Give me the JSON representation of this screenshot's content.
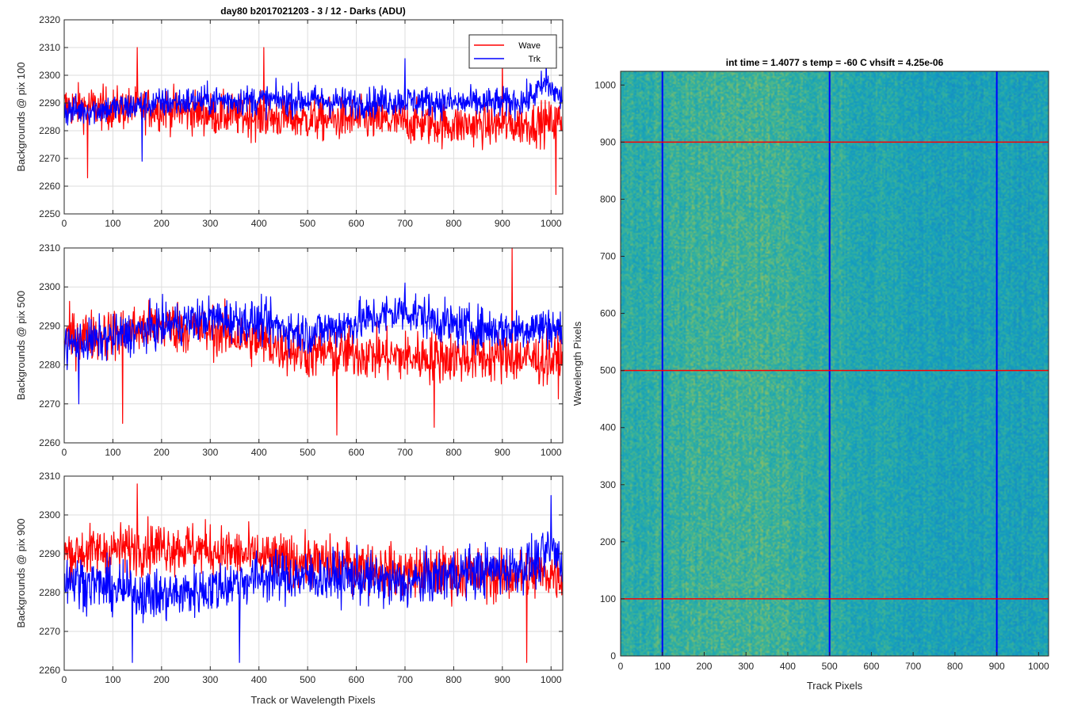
{
  "figure": {
    "title": "day80 b2017021203 - 3 / 12 - Darks (ADU)",
    "xlabel": "Track or Wavelength Pixels",
    "colors": {
      "wave": "#ff0000",
      "trk": "#0000ff",
      "grid": "#dedede",
      "axis": "#262626"
    }
  },
  "chart_data": [
    {
      "type": "line",
      "title": "day80 b2017021203 - 3 / 12 - Darks (ADU)",
      "ylabel": "Backgrounds @ pix 100",
      "xlabel": "",
      "xlim": [
        0,
        1024
      ],
      "ylim": [
        2250,
        2320
      ],
      "xticks": [
        0,
        100,
        200,
        300,
        400,
        500,
        600,
        700,
        800,
        900,
        1000
      ],
      "yticks": [
        2250,
        2260,
        2270,
        2280,
        2290,
        2300,
        2310,
        2320
      ],
      "grid": true,
      "legend": {
        "placement": "top-right",
        "entries": [
          "Wave",
          "Trk"
        ]
      },
      "series": [
        {
          "name": "Wave",
          "color": "#ff0000",
          "mean_profile": [
            [
              0,
              2289
            ],
            [
              100,
              2288
            ],
            [
              200,
              2288
            ],
            [
              300,
              2286
            ],
            [
              400,
              2285
            ],
            [
              500,
              2284
            ],
            [
              600,
              2284
            ],
            [
              700,
              2283
            ],
            [
              800,
              2282
            ],
            [
              900,
              2282
            ],
            [
              1000,
              2283
            ],
            [
              1024,
              2284
            ]
          ],
          "noise_amplitude": 7,
          "n_points": 1024,
          "extremes": [
            [
              48,
              2263
            ],
            [
              150,
              2310
            ],
            [
              410,
              2310
            ],
            [
              1010,
              2257
            ],
            [
              900,
              2306
            ]
          ]
        },
        {
          "name": "Trk",
          "color": "#0000ff",
          "mean_profile": [
            [
              0,
              2287
            ],
            [
              100,
              2288
            ],
            [
              200,
              2290
            ],
            [
              300,
              2291
            ],
            [
              400,
              2291
            ],
            [
              500,
              2291
            ],
            [
              600,
              2290
            ],
            [
              700,
              2291
            ],
            [
              800,
              2290
            ],
            [
              900,
              2290
            ],
            [
              950,
              2291
            ],
            [
              990,
              2297
            ],
            [
              1024,
              2291
            ]
          ],
          "noise_amplitude": 5,
          "n_points": 1024,
          "extremes": [
            [
              160,
              2269
            ],
            [
              700,
              2306
            ],
            [
              990,
              2306
            ]
          ]
        }
      ]
    },
    {
      "type": "line",
      "ylabel": "Backgrounds @ pix 500",
      "xlabel": "",
      "xlim": [
        0,
        1024
      ],
      "ylim": [
        2260,
        2310
      ],
      "xticks": [
        0,
        100,
        200,
        300,
        400,
        500,
        600,
        700,
        800,
        900,
        1000
      ],
      "yticks": [
        2260,
        2270,
        2280,
        2290,
        2300,
        2310
      ],
      "grid": true,
      "series": [
        {
          "name": "Wave",
          "color": "#ff0000",
          "mean_profile": [
            [
              0,
              2287
            ],
            [
              100,
              2288
            ],
            [
              200,
              2290
            ],
            [
              300,
              2289
            ],
            [
              400,
              2286
            ],
            [
              500,
              2283
            ],
            [
              600,
              2283
            ],
            [
              700,
              2282
            ],
            [
              800,
              2282
            ],
            [
              900,
              2282
            ],
            [
              1024,
              2281
            ]
          ],
          "noise_amplitude": 6,
          "n_points": 1024,
          "extremes": [
            [
              120,
              2265
            ],
            [
              560,
              2262
            ],
            [
              920,
              2310
            ],
            [
              760,
              2264
            ]
          ]
        },
        {
          "name": "Trk",
          "color": "#0000ff",
          "mean_profile": [
            [
              0,
              2285
            ],
            [
              100,
              2287
            ],
            [
              200,
              2290
            ],
            [
              300,
              2292
            ],
            [
              400,
              2291
            ],
            [
              500,
              2288
            ],
            [
              600,
              2291
            ],
            [
              700,
              2294
            ],
            [
              800,
              2290
            ],
            [
              900,
              2289
            ],
            [
              1000,
              2290
            ],
            [
              1024,
              2288
            ]
          ],
          "noise_amplitude": 5,
          "n_points": 1024,
          "extremes": [
            [
              30,
              2270
            ],
            [
              700,
              2301
            ]
          ]
        }
      ]
    },
    {
      "type": "line",
      "ylabel": "Backgrounds @ pix 900",
      "xlabel": "Track or Wavelength Pixels",
      "xlim": [
        0,
        1024
      ],
      "ylim": [
        2260,
        2310
      ],
      "xticks": [
        0,
        100,
        200,
        300,
        400,
        500,
        600,
        700,
        800,
        900,
        1000
      ],
      "yticks": [
        2260,
        2270,
        2280,
        2290,
        2300,
        2310
      ],
      "grid": true,
      "series": [
        {
          "name": "Wave",
          "color": "#ff0000",
          "mean_profile": [
            [
              0,
              2290
            ],
            [
              100,
              2291
            ],
            [
              200,
              2292
            ],
            [
              300,
              2291
            ],
            [
              400,
              2289
            ],
            [
              500,
              2288
            ],
            [
              600,
              2287
            ],
            [
              700,
              2285
            ],
            [
              800,
              2285
            ],
            [
              900,
              2284
            ],
            [
              1000,
              2285
            ],
            [
              1024,
              2284
            ]
          ],
          "noise_amplitude": 6,
          "n_points": 1024,
          "extremes": [
            [
              150,
              2308
            ],
            [
              950,
              2262
            ]
          ]
        },
        {
          "name": "Trk",
          "color": "#0000ff",
          "mean_profile": [
            [
              0,
              2284
            ],
            [
              100,
              2281
            ],
            [
              200,
              2279
            ],
            [
              300,
              2281
            ],
            [
              400,
              2284
            ],
            [
              500,
              2284
            ],
            [
              600,
              2284
            ],
            [
              700,
              2282
            ],
            [
              800,
              2285
            ],
            [
              900,
              2286
            ],
            [
              980,
              2288
            ],
            [
              1000,
              2292
            ],
            [
              1024,
              2287
            ]
          ],
          "noise_amplitude": 6,
          "n_points": 1024,
          "extremes": [
            [
              140,
              2262
            ],
            [
              360,
              2262
            ],
            [
              1000,
              2305
            ]
          ]
        }
      ]
    },
    {
      "type": "heatmap",
      "title": "int time = 1.4077 s   temp = -60 C   vhsift = 4.25e-06",
      "xlabel": "Track Pixels",
      "ylabel": "Wavelength Pixels",
      "xlim": [
        0,
        1024
      ],
      "ylim": [
        0,
        1024
      ],
      "xticks": [
        0,
        100,
        200,
        300,
        400,
        500,
        600,
        700,
        800,
        900,
        1000
      ],
      "yticks": [
        0,
        100,
        200,
        300,
        400,
        500,
        600,
        700,
        800,
        900,
        1000
      ],
      "colormap": "parula",
      "vertical_markers": {
        "x": [
          100,
          500,
          900
        ],
        "color": "#0000ff"
      },
      "horizontal_markers": {
        "y": [
          100,
          500,
          900
        ],
        "color": "#ff0000"
      }
    }
  ]
}
